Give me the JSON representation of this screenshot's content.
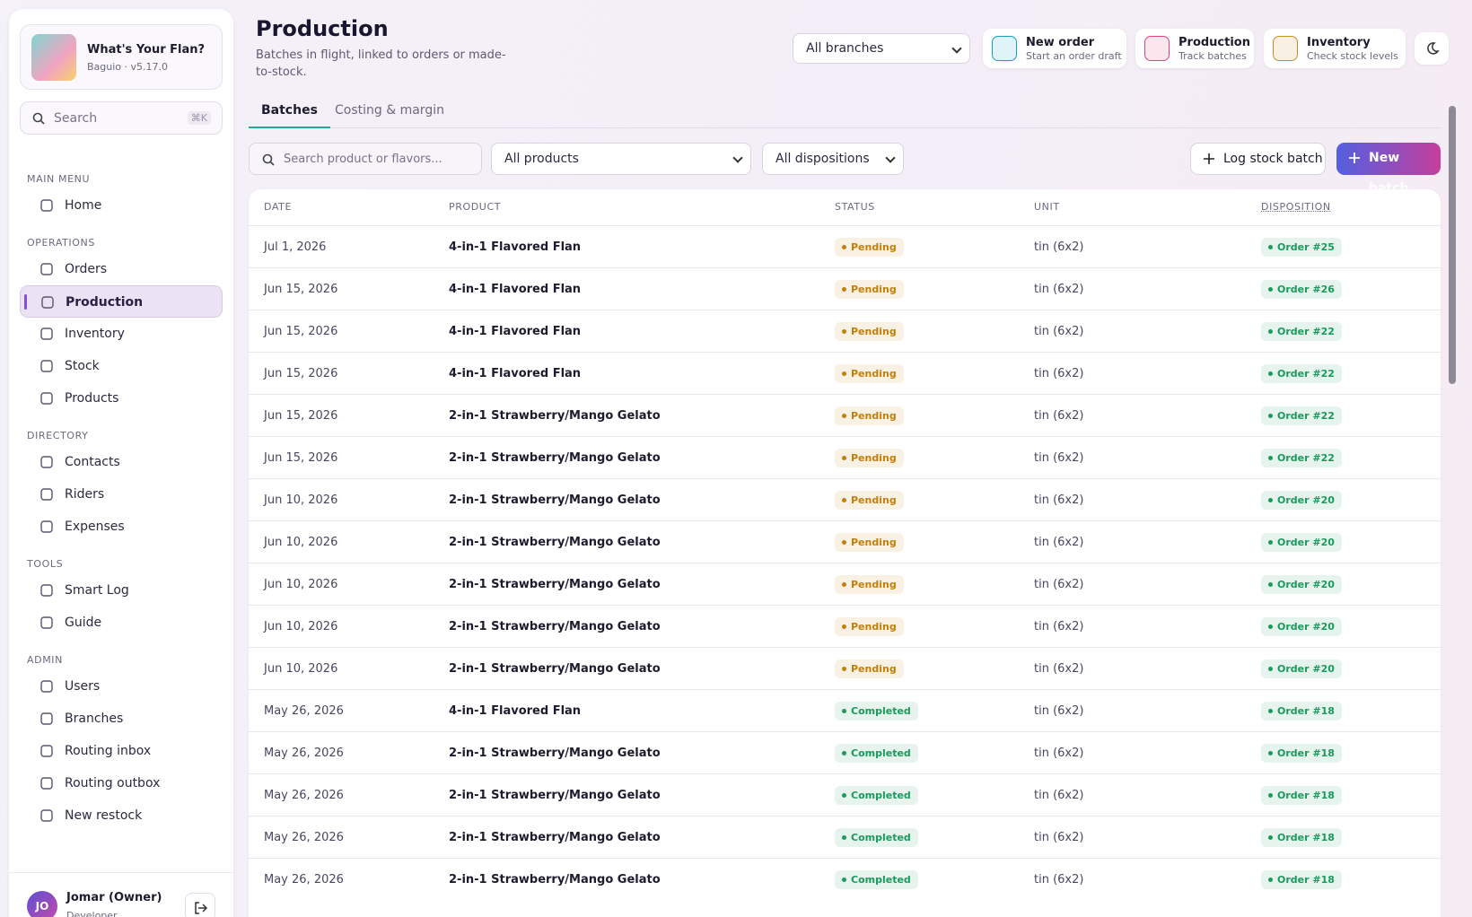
{
  "sidebar": {
    "brand": {
      "name": "What's Your Flan?",
      "subtitle": "Baguio · v5.17.0"
    },
    "search": {
      "placeholder": "Search",
      "shortcut": "⌘K"
    },
    "sections": [
      {
        "title": "MAIN MENU",
        "items": [
          "Home"
        ]
      },
      {
        "title": "OPERATIONS",
        "items": [
          "Orders",
          "Production",
          "Inventory",
          "Stock",
          "Products"
        ]
      },
      {
        "title": "DIRECTORY",
        "items": [
          "Contacts",
          "Riders",
          "Expenses"
        ]
      },
      {
        "title": "TOOLS",
        "items": [
          "Smart Log",
          "Guide"
        ]
      },
      {
        "title": "ADMIN",
        "items": [
          "Users",
          "Branches",
          "Routing inbox",
          "Routing outbox",
          "New restock"
        ]
      }
    ],
    "user": {
      "initials": "JO",
      "name": "Jomar (Owner)",
      "role": "Developer"
    }
  },
  "header": {
    "title": "Production",
    "subtitle": "Batches in flight, linked to orders or made-to-stock.",
    "branch_select": "All branches",
    "quick_actions": [
      {
        "title": "New order",
        "subtitle": "Start an order draft",
        "color": "#14a3c7"
      },
      {
        "title": "Production",
        "subtitle": "Track batches",
        "color": "#e0457b"
      },
      {
        "title": "Inventory",
        "subtitle": "Check stock levels",
        "color": "#c8902a"
      }
    ]
  },
  "tabs": [
    "Batches",
    "Costing & margin"
  ],
  "filters": {
    "search_placeholder": "Search product or flavors...",
    "product_select": "All products",
    "disposition_select": "All dispositions",
    "log_button": "Log stock batch",
    "new_button": "New batch"
  },
  "table": {
    "columns": [
      "DATE",
      "PRODUCT",
      "STATUS",
      "UNIT",
      "DISPOSITION"
    ],
    "status_colors": {
      "Pending": "#c47f0a",
      "Completed": "#1a9a5c"
    },
    "rows": [
      [
        "Jul 1, 2026",
        "4-in-1 Flavored Flan",
        "Pending",
        "tin (6x2)",
        "Order #25"
      ],
      [
        "Jun 15, 2026",
        "4-in-1 Flavored Flan",
        "Pending",
        "tin (6x2)",
        "Order #26"
      ],
      [
        "Jun 15, 2026",
        "4-in-1 Flavored Flan",
        "Pending",
        "tin (6x2)",
        "Order #22"
      ],
      [
        "Jun 15, 2026",
        "4-in-1 Flavored Flan",
        "Pending",
        "tin (6x2)",
        "Order #22"
      ],
      [
        "Jun 15, 2026",
        "2-in-1 Strawberry/Mango Gelato",
        "Pending",
        "tin (6x2)",
        "Order #22"
      ],
      [
        "Jun 15, 2026",
        "2-in-1 Strawberry/Mango Gelato",
        "Pending",
        "tin (6x2)",
        "Order #22"
      ],
      [
        "Jun 10, 2026",
        "2-in-1 Strawberry/Mango Gelato",
        "Pending",
        "tin (6x2)",
        "Order #20"
      ],
      [
        "Jun 10, 2026",
        "2-in-1 Strawberry/Mango Gelato",
        "Pending",
        "tin (6x2)",
        "Order #20"
      ],
      [
        "Jun 10, 2026",
        "2-in-1 Strawberry/Mango Gelato",
        "Pending",
        "tin (6x2)",
        "Order #20"
      ],
      [
        "Jun 10, 2026",
        "2-in-1 Strawberry/Mango Gelato",
        "Pending",
        "tin (6x2)",
        "Order #20"
      ],
      [
        "Jun 10, 2026",
        "2-in-1 Strawberry/Mango Gelato",
        "Pending",
        "tin (6x2)",
        "Order #20"
      ],
      [
        "May 26, 2026",
        "4-in-1 Flavored Flan",
        "Completed",
        "tin (6x2)",
        "Order #18"
      ],
      [
        "May 26, 2026",
        "2-in-1 Strawberry/Mango Gelato",
        "Completed",
        "tin (6x2)",
        "Order #18"
      ],
      [
        "May 26, 2026",
        "2-in-1 Strawberry/Mango Gelato",
        "Completed",
        "tin (6x2)",
        "Order #18"
      ],
      [
        "May 26, 2026",
        "2-in-1 Strawberry/Mango Gelato",
        "Completed",
        "tin (6x2)",
        "Order #18"
      ],
      [
        "May 26, 2026",
        "2-in-1 Strawberry/Mango Gelato",
        "Completed",
        "tin (6x2)",
        "Order #18"
      ]
    ]
  }
}
